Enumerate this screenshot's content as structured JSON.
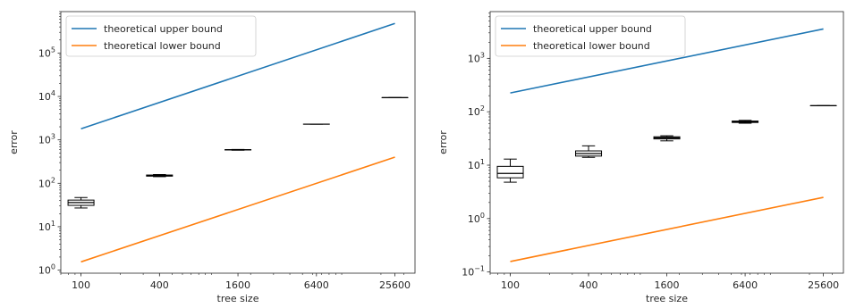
{
  "chart_data": [
    {
      "type": "box",
      "xlabel": "tree size",
      "ylabel": "error",
      "xscale": "log",
      "yscale": "log",
      "xlim": [
        70,
        36500
      ],
      "ylim": [
        0.85,
        900000
      ],
      "xticks": [
        100,
        400,
        1600,
        6400,
        25600
      ],
      "xticklabels": [
        "100",
        "400",
        "1600",
        "6400",
        "25600"
      ],
      "yticks": [
        1,
        10,
        100,
        1000,
        10000,
        100000
      ],
      "yticklabels": [
        [
          "10",
          "0"
        ],
        [
          "10",
          "1"
        ],
        [
          "10",
          "2"
        ],
        [
          "10",
          "3"
        ],
        [
          "10",
          "4"
        ],
        [
          "10",
          "5"
        ]
      ],
      "legend_position": "upper left",
      "series": [
        {
          "name": "theoretical upper bound",
          "color": "#1f77b4",
          "x": [
            100,
            25600
          ],
          "y": [
            1800,
            480000
          ]
        },
        {
          "name": "theoretical lower bound",
          "color": "#ff7f0e",
          "x": [
            100,
            25600
          ],
          "y": [
            1.55,
            400
          ]
        }
      ],
      "boxes": [
        {
          "x": 100,
          "whislo": 27,
          "q1": 31,
          "med": 36,
          "q3": 41,
          "whishi": 47
        },
        {
          "x": 400,
          "whislo": 142,
          "q1": 146,
          "med": 150,
          "q3": 155,
          "whishi": 159
        },
        {
          "x": 1600,
          "whislo": 577,
          "q1": 585,
          "med": 590,
          "q3": 596,
          "whishi": 602
        },
        {
          "x": 6400,
          "whislo": 2300,
          "q1": 2300,
          "med": 2300,
          "q3": 2300,
          "whishi": 2300
        },
        {
          "x": 25600,
          "whislo": 9400,
          "q1": 9400,
          "med": 9400,
          "q3": 9400,
          "whishi": 9400
        }
      ]
    },
    {
      "type": "box",
      "xlabel": "tree size",
      "ylabel": "error",
      "xscale": "log",
      "yscale": "log",
      "xlim": [
        70,
        36500
      ],
      "ylim": [
        0.095,
        7500
      ],
      "xticks": [
        100,
        400,
        1600,
        6400,
        25600
      ],
      "xticklabels": [
        "100",
        "400",
        "1600",
        "6400",
        "25600"
      ],
      "yticks": [
        0.1,
        1,
        10,
        100,
        1000
      ],
      "yticklabels": [
        [
          "10",
          "−1"
        ],
        [
          "10",
          "0"
        ],
        [
          "10",
          "1"
        ],
        [
          "10",
          "2"
        ],
        [
          "10",
          "3"
        ]
      ],
      "legend_position": "upper left",
      "series": [
        {
          "name": "theoretical upper bound",
          "color": "#1f77b4",
          "x": [
            100,
            25600
          ],
          "y": [
            225,
            3550
          ]
        },
        {
          "name": "theoretical lower bound",
          "color": "#ff7f0e",
          "x": [
            100,
            25600
          ],
          "y": [
            0.157,
            2.5
          ]
        }
      ],
      "boxes": [
        {
          "x": 100,
          "whislo": 4.8,
          "q1": 5.8,
          "med": 7.0,
          "q3": 9.5,
          "whishi": 13
        },
        {
          "x": 400,
          "whislo": 14,
          "q1": 14.8,
          "med": 16.5,
          "q3": 18.5,
          "whishi": 23
        },
        {
          "x": 1600,
          "whislo": 28.5,
          "q1": 31,
          "med": 32.5,
          "q3": 34,
          "whishi": 35.5
        },
        {
          "x": 6400,
          "whislo": 61,
          "q1": 63,
          "med": 65,
          "q3": 67,
          "whishi": 69
        },
        {
          "x": 25600,
          "whislo": 130,
          "q1": 130,
          "med": 130,
          "q3": 130,
          "whishi": 130
        }
      ]
    }
  ]
}
